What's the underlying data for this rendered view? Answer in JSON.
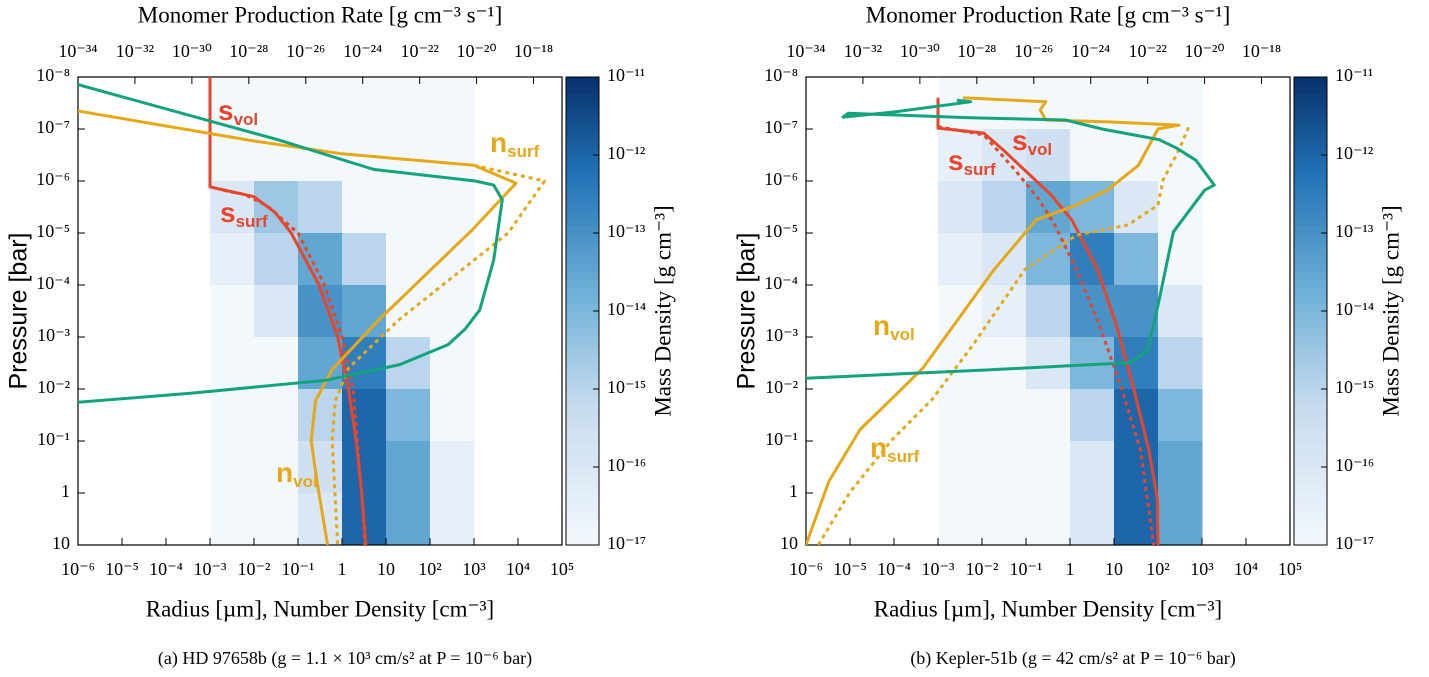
{
  "chart_data": [
    {
      "type": "line",
      "xlabel": "Radius [µm], Number Density [cm⁻³]",
      "ylabel": "Pressure [bar]",
      "x2label": "Monomer Production Rate [g cm⁻³ s⁻¹]",
      "x2color": "#13a37d",
      "caption": "(a) HD 97658b (g = 1.1 × 10³ cm/s² at P = 10⁻⁶ bar)",
      "xscale": "log",
      "yscale": "log",
      "xlim": [
        1e-06,
        100000.0
      ],
      "xticks": [
        {
          "value": 1e-06,
          "label": "10⁻⁶"
        },
        {
          "value": 1e-05,
          "label": "10⁻⁵"
        },
        {
          "value": 0.0001,
          "label": "10⁻⁴"
        },
        {
          "value": 0.001,
          "label": "10⁻³"
        },
        {
          "value": 0.01,
          "label": "10⁻²"
        },
        {
          "value": 0.1,
          "label": "10⁻¹"
        },
        1,
        10,
        {
          "value": 100,
          "label": "10²"
        },
        {
          "value": 1000,
          "label": "10³"
        },
        {
          "value": 10000,
          "label": "10⁴"
        },
        {
          "value": 100000,
          "label": "10⁵"
        }
      ],
      "x2lim": [
        1e-34,
        1e-17
      ],
      "x2ticks": [
        {
          "value": 1e-34,
          "label": "10⁻³⁴"
        },
        {
          "value": 1e-32,
          "label": "10⁻³²"
        },
        {
          "value": 1e-30,
          "label": "10⁻³⁰"
        },
        {
          "value": 1e-28,
          "label": "10⁻²⁸"
        },
        {
          "value": 1e-26,
          "label": "10⁻²⁶"
        },
        {
          "value": 1e-24,
          "label": "10⁻²⁴"
        },
        {
          "value": 1e-22,
          "label": "10⁻²²"
        },
        {
          "value": 1e-20,
          "label": "10⁻²⁰"
        },
        {
          "value": 1e-18,
          "label": "10⁻¹⁸"
        }
      ],
      "ylim": [
        10,
        1e-08
      ],
      "yticks": [
        {
          "value": 1e-08,
          "label": "10⁻⁸"
        },
        {
          "value": 1e-07,
          "label": "10⁻⁷"
        },
        {
          "value": 1e-06,
          "label": "10⁻⁶"
        },
        {
          "value": 1e-05,
          "label": "10⁻⁵"
        },
        {
          "value": 0.0001,
          "label": "10⁻⁴"
        },
        {
          "value": 0.001,
          "label": "10⁻³"
        },
        {
          "value": 0.01,
          "label": "10⁻²"
        },
        {
          "value": 0.1,
          "label": "10⁻¹"
        },
        1,
        10
      ],
      "heatmap": {
        "label": "Mass Density [g cm⁻³]",
        "x_edges": [
          0.001,
          0.01,
          0.1,
          1,
          10,
          100,
          1000
        ],
        "y_edges": [
          1e-08,
          1e-07,
          1e-06,
          1e-05,
          0.0001,
          0.001,
          0.01,
          0.1,
          1,
          10
        ],
        "values": [
          [
            1e-17,
            1e-17,
            1e-17,
            1e-17,
            1e-17,
            1e-17
          ],
          [
            1e-17,
            1e-17,
            1e-17,
            1e-17,
            1e-17,
            1e-17
          ],
          [
            1e-16,
            3e-15,
            1e-15,
            1e-17,
            1e-17,
            1e-17
          ],
          [
            3e-17,
            1e-15,
            3e-14,
            1e-15,
            1e-17,
            1e-17
          ],
          [
            1e-17,
            1e-16,
            1e-13,
            3e-14,
            1e-17,
            1e-17
          ],
          [
            1e-17,
            1e-17,
            3e-14,
            3e-13,
            1e-15,
            1e-17
          ],
          [
            1e-17,
            1e-17,
            1e-15,
            1e-12,
            1e-14,
            1e-17
          ],
          [
            1e-17,
            1e-17,
            3e-16,
            1e-12,
            3e-14,
            3e-17
          ],
          [
            1e-17,
            1e-17,
            1e-16,
            1e-12,
            3e-14,
            3e-17
          ]
        ],
        "clim": [
          1e-17,
          1e-11
        ],
        "cticks": [
          {
            "value": 1e-17,
            "label": "10⁻¹⁷"
          },
          {
            "value": 1e-16,
            "label": "10⁻¹⁶"
          },
          {
            "value": 1e-15,
            "label": "10⁻¹⁵"
          },
          {
            "value": 1e-14,
            "label": "10⁻¹⁴"
          },
          {
            "value": 1e-13,
            "label": "10⁻¹³"
          },
          {
            "value": 1e-12,
            "label": "10⁻¹²"
          },
          {
            "value": 1e-11,
            "label": "10⁻¹¹"
          }
        ]
      },
      "series": [
        {
          "name": "s",
          "name_sub": "vol",
          "color": "#e8452a",
          "dash": "solid",
          "x": [
            0.001,
            0.001,
            0.003,
            0.01,
            0.03,
            0.07,
            0.3,
            0.8,
            1.4,
            2.1,
            2.8,
            3.5
          ],
          "y": [
            1e-08,
            1.3e-06,
            1.6e-06,
            2e-06,
            4e-06,
            1e-05,
            0.0001,
            0.001,
            0.01,
            0.1,
            1,
            10
          ]
        },
        {
          "name": "s",
          "name_sub": "surf",
          "color": "#e8452a",
          "dash": "dotted",
          "x": [
            0.002,
            0.006,
            0.02,
            0.05,
            0.1,
            0.4,
            1.0,
            1.8,
            2.2,
            2.8,
            3.3
          ],
          "y": [
            1.5e-06,
            1.8e-06,
            3e-06,
            6e-06,
            1e-05,
            0.0001,
            0.001,
            0.01,
            0.1,
            1,
            10
          ]
        },
        {
          "name": "n",
          "name_sub": "vol",
          "color": "#e6a817",
          "dash": "solid",
          "x": [
            1e-06,
            0.01,
            1,
            1000,
            9000,
            900,
            7,
            0.6,
            0.25,
            0.2,
            0.27,
            0.47
          ],
          "y": [
            4.5e-08,
            1.7e-07,
            3e-07,
            5e-07,
            1.1e-06,
            8.8e-06,
            0.00046,
            0.0042,
            0.017,
            0.1,
            0.6,
            10
          ]
        },
        {
          "name": "n",
          "name_sub": "surf",
          "color": "#e6a817",
          "dash": "dotted",
          "x": [
            1000,
            40000,
            6000,
            20,
            1.4,
            0.7,
            0.6,
            0.8
          ],
          "y": [
            5e-07,
            1e-06,
            1e-05,
            0.00046,
            0.004,
            0.017,
            0.1,
            10
          ]
        },
        {
          "color": "#13a37d",
          "dash": "solid",
          "axis": "x2",
          "x": [
            1e-34,
            1e-27,
            2.5e-24,
            9e-21,
            4e-20,
            8e-20,
            4e-20,
            1.3e-20,
            4e-21,
            1e-21,
            2e-23,
            5e-26,
            1e-30,
            1e-34
          ],
          "y": [
            1.4e-08,
            1.6e-07,
            6e-07,
            1e-06,
            1.2e-06,
            2.3e-06,
            3.3e-05,
            0.0003,
            0.0007,
            0.0014,
            0.0034,
            0.0068,
            0.012,
            0.018
          ]
        }
      ]
    },
    {
      "type": "line",
      "xlabel": "Radius [µm], Number Density [cm⁻³]",
      "ylabel": "Pressure [bar]",
      "x2label": "Monomer Production Rate [g cm⁻³ s⁻¹]",
      "x2color": "#13a37d",
      "caption": "(b) Kepler-51b (g = 42 cm/s² at P = 10⁻⁶ bar)",
      "xscale": "log",
      "yscale": "log",
      "xlim": [
        1e-06,
        100000.0
      ],
      "xticks": [
        {
          "value": 1e-06,
          "label": "10⁻⁶"
        },
        {
          "value": 1e-05,
          "label": "10⁻⁵"
        },
        {
          "value": 0.0001,
          "label": "10⁻⁴"
        },
        {
          "value": 0.001,
          "label": "10⁻³"
        },
        {
          "value": 0.01,
          "label": "10⁻²"
        },
        {
          "value": 0.1,
          "label": "10⁻¹"
        },
        1,
        10,
        {
          "value": 100,
          "label": "10²"
        },
        {
          "value": 1000,
          "label": "10³"
        },
        {
          "value": 10000,
          "label": "10⁴"
        },
        {
          "value": 100000,
          "label": "10⁵"
        }
      ],
      "x2lim": [
        1e-34,
        1e-17
      ],
      "x2ticks": [
        {
          "value": 1e-34,
          "label": "10⁻³⁴"
        },
        {
          "value": 1e-32,
          "label": "10⁻³²"
        },
        {
          "value": 1e-30,
          "label": "10⁻³⁰"
        },
        {
          "value": 1e-28,
          "label": "10⁻²⁸"
        },
        {
          "value": 1e-26,
          "label": "10⁻²⁶"
        },
        {
          "value": 1e-24,
          "label": "10⁻²⁴"
        },
        {
          "value": 1e-22,
          "label": "10⁻²²"
        },
        {
          "value": 1e-20,
          "label": "10⁻²⁰"
        },
        {
          "value": 1e-18,
          "label": "10⁻¹⁸"
        }
      ],
      "ylim": [
        10,
        1e-08
      ],
      "yticks": [
        {
          "value": 1e-08,
          "label": "10⁻⁸"
        },
        {
          "value": 1e-07,
          "label": "10⁻⁷"
        },
        {
          "value": 1e-06,
          "label": "10⁻⁶"
        },
        {
          "value": 1e-05,
          "label": "10⁻⁵"
        },
        {
          "value": 0.0001,
          "label": "10⁻⁴"
        },
        {
          "value": 0.001,
          "label": "10⁻³"
        },
        {
          "value": 0.01,
          "label": "10⁻²"
        },
        {
          "value": 0.1,
          "label": "10⁻¹"
        },
        1,
        10
      ],
      "heatmap": {
        "label": "Mass Density [g cm⁻³]",
        "x_edges": [
          0.001,
          0.01,
          0.1,
          1,
          10,
          100,
          1000
        ],
        "y_edges": [
          1e-08,
          1e-07,
          1e-06,
          1e-05,
          0.0001,
          0.001,
          0.01,
          0.1,
          1,
          10
        ],
        "values": [
          [
            1e-17,
            1e-17,
            1e-17,
            1e-17,
            1e-17,
            1e-17
          ],
          [
            3e-17,
            1e-16,
            3e-16,
            1e-17,
            1e-17,
            1e-17
          ],
          [
            1e-16,
            1e-15,
            3e-14,
            1e-14,
            1e-16,
            1e-17
          ],
          [
            3e-17,
            1e-16,
            1e-14,
            3e-13,
            1e-14,
            1e-17
          ],
          [
            1e-17,
            3e-17,
            1e-15,
            1e-13,
            1e-13,
            1e-16
          ],
          [
            1e-17,
            1e-17,
            1e-16,
            1e-14,
            3e-13,
            1e-15
          ],
          [
            1e-17,
            1e-17,
            1e-17,
            1e-15,
            1e-12,
            1e-14
          ],
          [
            1e-17,
            1e-17,
            1e-17,
            1e-16,
            1e-12,
            3e-14
          ],
          [
            1e-17,
            1e-17,
            1e-17,
            1e-16,
            1e-12,
            3e-14
          ]
        ],
        "clim": [
          1e-17,
          1e-11
        ],
        "cticks": [
          {
            "value": 1e-17,
            "label": "10⁻¹⁷"
          },
          {
            "value": 1e-16,
            "label": "10⁻¹⁶"
          },
          {
            "value": 1e-15,
            "label": "10⁻¹⁵"
          },
          {
            "value": 1e-14,
            "label": "10⁻¹⁴"
          },
          {
            "value": 1e-13,
            "label": "10⁻¹³"
          },
          {
            "value": 1e-12,
            "label": "10⁻¹²"
          },
          {
            "value": 1e-11,
            "label": "10⁻¹¹"
          }
        ]
      },
      "series": [
        {
          "name": "s",
          "name_sub": "vol",
          "color": "#e8452a",
          "dash": "solid",
          "x": [
            0.001,
            0.001,
            0.011,
            0.03,
            0.09,
            0.36,
            1.1,
            4.2,
            12,
            28,
            62,
            97,
            100
          ],
          "y": [
            2.5e-08,
            9.6e-08,
            1.2e-07,
            2.5e-07,
            6e-07,
            1.8e-06,
            5.6e-06,
            5e-05,
            0.0007,
            0.01,
            0.15,
            1.3,
            10
          ]
        },
        {
          "name": "s",
          "name_sub": "surf",
          "color": "#e8452a",
          "dash": "dotted",
          "x": [
            0.001,
            0.011,
            0.055,
            0.2,
            0.45,
            1.4,
            5,
            15,
            40,
            80
          ],
          "y": [
            9e-08,
            1.3e-07,
            6e-07,
            2.3e-06,
            7e-06,
            5e-05,
            0.0007,
            0.01,
            0.15,
            10
          ]
        },
        {
          "name": "n",
          "name_sub": "vol",
          "color": "#e6a817",
          "dash": "solid",
          "x": [
            1e-06,
            3.3e-06,
            1.7e-05,
            8.5e-05,
            0.00045,
            0.019,
            0.17,
            1.4,
            7,
            36,
            100,
            300,
            7.3,
            0.28,
            0.21,
            0.28,
            0.0037
          ],
          "y": [
            10,
            0.6,
            0.06,
            0.016,
            0.004,
            5e-05,
            5.6e-06,
            2.9e-06,
            1.5e-06,
            5e-07,
            1e-07,
            8.4e-08,
            7.3e-08,
            6.7e-08,
            4.3e-08,
            3e-08,
            2.5e-08
          ]
        },
        {
          "name": "n",
          "name_sub": "surf",
          "color": "#e6a817",
          "dash": "dotted",
          "x": [
            1.9e-06,
            9.7e-06,
            8.5e-05,
            0.00073,
            0.0063,
            0.095,
            1.4,
            21,
            100,
            130,
            300,
            520
          ],
          "y": [
            10,
            1,
            0.1,
            0.016,
            0.0014,
            5e-05,
            1.1e-05,
            7e-06,
            2.9e-06,
            9.6e-07,
            2.5e-07,
            8.4e-08
          ]
        },
        {
          "color": "#13a37d",
          "dash": "solid",
          "axis": "x2",
          "x": [
            1e-34,
            2.5e-28,
            2.5e-23,
            1e-22,
            2.5e-22,
            8e-22,
            1e-20,
            2.2e-20,
            5e-21,
            1e-21,
            2.5e-22,
            2.5e-24,
            1.3e-25,
            6e-29,
            3e-33,
            2e-33,
            1.3e-31,
            6e-29,
            2e-29
          ],
          "y": [
            0.0062,
            0.0043,
            0.0031,
            0.0018,
            0.0002,
            9.5e-06,
            1.5e-06,
            1.2e-06,
            4e-07,
            2.3e-07,
            1.6e-07,
            1e-07,
            6.7e-08,
            6.1e-08,
            5e-08,
            5.9e-08,
            4.7e-08,
            3e-08,
            2.8e-08
          ]
        }
      ]
    }
  ]
}
